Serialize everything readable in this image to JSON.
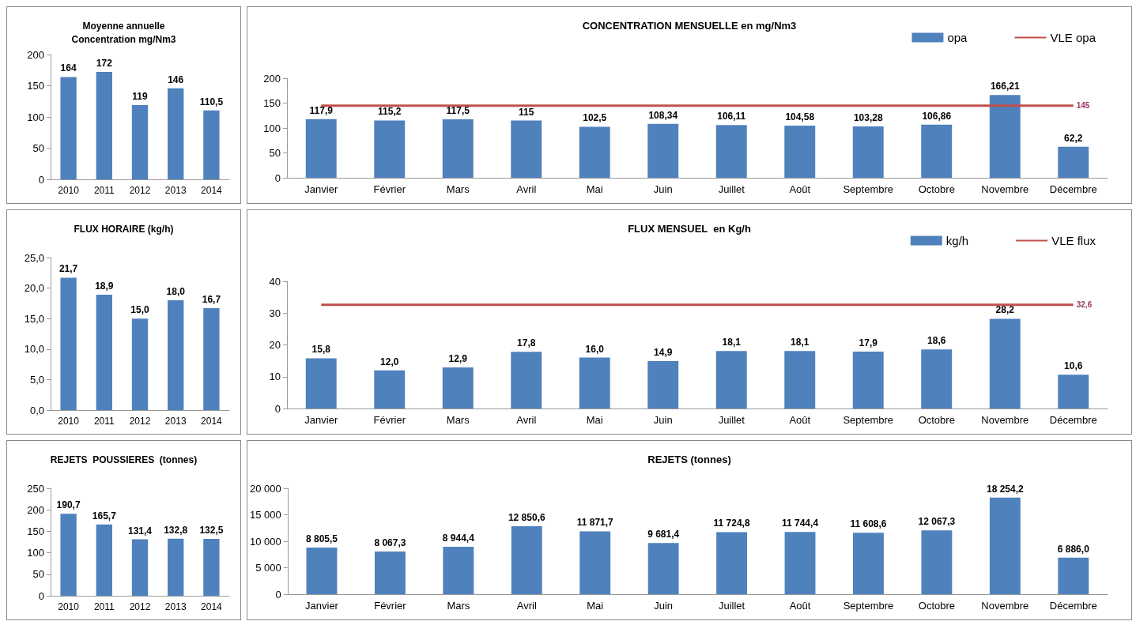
{
  "chart_data": [
    {
      "type": "bar",
      "title": "Moyenne annuelle\nConcentration mg/Nm3",
      "categories": [
        "2010",
        "2011",
        "2012",
        "2013",
        "2014"
      ],
      "series": [
        {
          "color": "#4f81bd",
          "values": [
            164,
            172,
            119,
            146,
            110.5
          ],
          "value_labels": [
            "164",
            "172",
            "119",
            "146",
            "110,5"
          ]
        }
      ],
      "ylim": [
        0,
        200
      ],
      "yticks": [
        0,
        50,
        100,
        150,
        200
      ],
      "grid": false,
      "legend": false
    },
    {
      "type": "bar",
      "title": "CONCENTRATION MENSUELLE en mg/Nm3",
      "categories": [
        "Janvier",
        "Février",
        "Mars",
        "Avril",
        "Mai",
        "Juin",
        "Juillet",
        "Août",
        "Septembre",
        "Octobre",
        "Novembre",
        "Décembre"
      ],
      "series": [
        {
          "name": "opa",
          "color": "#4f81bd",
          "values": [
            117.9,
            115.2,
            117.5,
            115,
            102.5,
            108.34,
            106.11,
            104.58,
            103.28,
            106.86,
            166.21,
            62.2
          ],
          "value_labels": [
            "117,9",
            "115,2",
            "117,5",
            "115",
            "102,5",
            "108,34",
            "106,11",
            "104,58",
            "103,28",
            "106,86",
            "166,21",
            "62,2"
          ]
        },
        {
          "name": "VLE opa",
          "type": "line",
          "color": "#c0504d",
          "values": [
            145,
            145,
            145,
            145,
            145,
            145,
            145,
            145,
            145,
            145,
            145,
            145
          ],
          "value_labels": [
            null,
            null,
            null,
            null,
            null,
            null,
            null,
            null,
            null,
            null,
            null,
            "145"
          ]
        }
      ],
      "ylim": [
        0,
        200
      ],
      "yticks": [
        0,
        50,
        100,
        150,
        200
      ],
      "grid": false,
      "legend": "top right",
      "marker": "none"
    },
    {
      "type": "bar",
      "title": "FLUX HORAIRE (kg/h)",
      "categories": [
        "2010",
        "2011",
        "2012",
        "2013",
        "2014"
      ],
      "series": [
        {
          "color": "#4f81bd",
          "values": [
            21.7,
            18.9,
            15.0,
            18.0,
            16.7
          ],
          "value_labels": [
            "21,7",
            "18,9",
            "15,0",
            "18,0",
            "16,7"
          ]
        }
      ],
      "ylim": [
        0,
        25
      ],
      "yticks": [
        {
          "value": 0,
          "label": "0,0"
        },
        {
          "value": 5,
          "label": "5,0"
        },
        {
          "value": 10,
          "label": "10,0"
        },
        {
          "value": 15,
          "label": "15,0"
        },
        {
          "value": 20,
          "label": "20,0"
        },
        {
          "value": 25,
          "label": "25,0"
        }
      ],
      "grid": false,
      "legend": false
    },
    {
      "type": "bar",
      "title": "FLUX MENSUEL  en Kg/h",
      "categories": [
        "Janvier",
        "Février",
        "Mars",
        "Avril",
        "Mai",
        "Juin",
        "Juillet",
        "Août",
        "Septembre",
        "Octobre",
        "Novembre",
        "Décembre"
      ],
      "series": [
        {
          "name": "kg/h",
          "color": "#4f81bd",
          "values": [
            15.8,
            12.0,
            12.9,
            17.8,
            16.0,
            14.9,
            18.1,
            18.1,
            17.9,
            18.6,
            28.2,
            10.6
          ],
          "value_labels": [
            "15,8",
            "12,0",
            "12,9",
            "17,8",
            "16,0",
            "14,9",
            "18,1",
            "18,1",
            "17,9",
            "18,6",
            "28,2",
            "10,6"
          ]
        },
        {
          "name": "VLE flux",
          "type": "line",
          "color": "#c0504d",
          "values": [
            32.6,
            32.6,
            32.6,
            32.6,
            32.6,
            32.6,
            32.6,
            32.6,
            32.6,
            32.6,
            32.6,
            32.6
          ],
          "value_labels": [
            null,
            null,
            null,
            null,
            null,
            null,
            null,
            null,
            null,
            null,
            null,
            "32,6"
          ]
        }
      ],
      "ylim": [
        0,
        40
      ],
      "yticks": [
        0,
        10,
        20,
        30,
        40
      ],
      "grid": false,
      "legend": "top right",
      "marker": "none"
    },
    {
      "type": "bar",
      "title": "REJETS  POUSSIERES  (tonnes)",
      "categories": [
        "2010",
        "2011",
        "2012",
        "2013",
        "2014"
      ],
      "series": [
        {
          "color": "#4f81bd",
          "values": [
            190.7,
            165.7,
            131.4,
            132.8,
            132.5
          ],
          "value_labels": [
            "190,7",
            "165,7",
            "131,4",
            "132,8",
            "132,5"
          ]
        }
      ],
      "ylim": [
        0,
        250
      ],
      "yticks": [
        0,
        50,
        100,
        150,
        200,
        250
      ],
      "grid": false,
      "legend": false
    },
    {
      "type": "bar",
      "title": "REJETS (tonnes)",
      "categories": [
        "Janvier",
        "Février",
        "Mars",
        "Avril",
        "Mai",
        "Juin",
        "Juillet",
        "Août",
        "Septembre",
        "Octobre",
        "Novembre",
        "Décembre"
      ],
      "series": [
        {
          "color": "#4f81bd",
          "values": [
            8805.5,
            8067.3,
            8944.4,
            12850.6,
            11871.7,
            9681.4,
            11724.8,
            11744.4,
            11608.6,
            12067.3,
            18254.2,
            6886.0
          ],
          "value_labels": [
            "8 805,5",
            "8 067,3",
            "8 944,4",
            "12 850,6",
            "11 871,7",
            "9 681,4",
            "11 724,8",
            "11 744,4",
            "11 608,6",
            "12 067,3",
            "18 254,2",
            "6 886,0"
          ]
        }
      ],
      "ylim": [
        0,
        20000
      ],
      "yticks": [
        0,
        {
          "value": 5000,
          "label": "5 000"
        },
        {
          "value": 10000,
          "label": "10 000"
        },
        {
          "value": 15000,
          "label": "15 000"
        },
        {
          "value": 20000,
          "label": "20 000"
        }
      ],
      "grid": false,
      "legend": false
    }
  ]
}
